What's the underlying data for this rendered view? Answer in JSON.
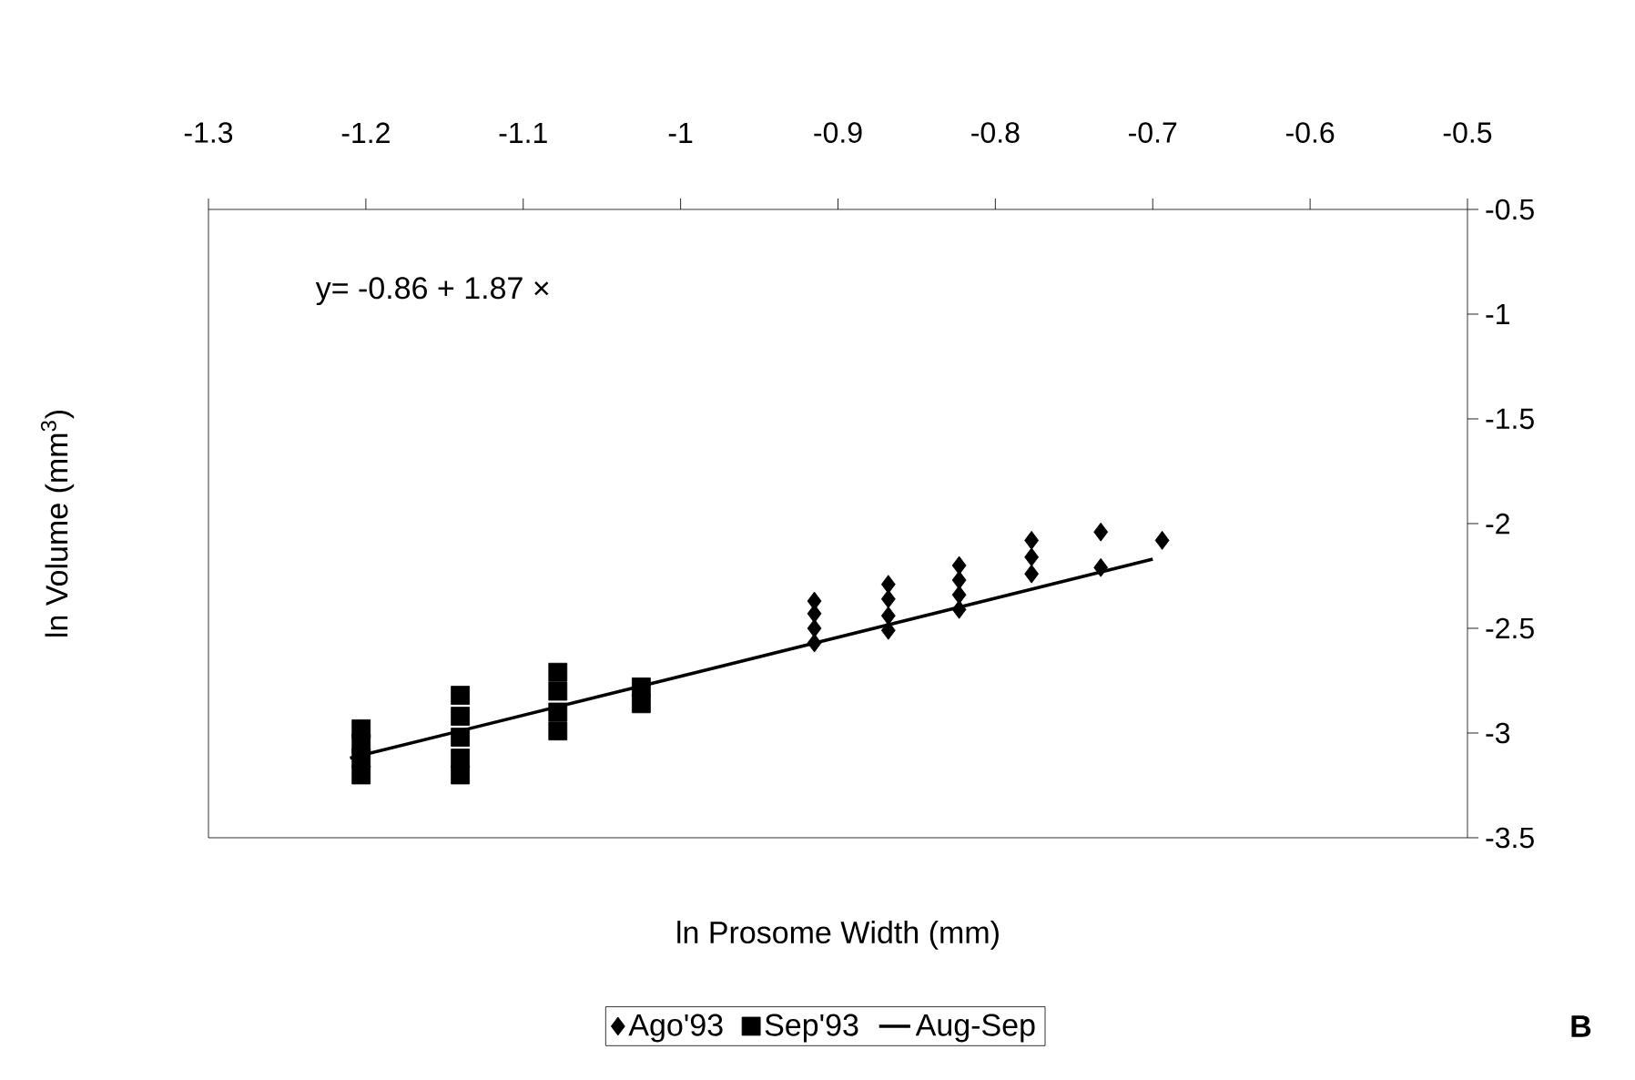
{
  "chart_data": {
    "type": "scatter",
    "xlabel": "ln Prosome Width (mm)",
    "ylabel": "ln Volume (mm$^{3}$)",
    "xlim": [
      -1.3,
      -0.5
    ],
    "xticks": [
      -1.3,
      -1.2,
      -1.1,
      -1,
      -0.9,
      -0.8,
      -0.7,
      -0.6,
      -0.5
    ],
    "ylim": [
      -3.5,
      -0.5
    ],
    "yticks": [
      -3.5,
      -3,
      -2.5,
      -2,
      -1.5,
      -1,
      -0.5
    ],
    "legend": "bottom",
    "grid": false,
    "annotations": [
      "y= -0.86 + 1.87 ×",
      "B"
    ],
    "series": [
      {
        "name": "Ago'93",
        "marker": "diamond",
        "color": "#000000",
        "x": [
          -0.915,
          -0.915,
          -0.915,
          -0.915,
          -0.868,
          -0.868,
          -0.868,
          -0.868,
          -0.823,
          -0.823,
          -0.823,
          -0.823,
          -0.777,
          -0.777,
          -0.777,
          -0.733,
          -0.733,
          -0.694
        ],
        "values": [
          -2.37,
          -2.43,
          -2.5,
          -2.57,
          -2.29,
          -2.36,
          -2.44,
          -2.51,
          -2.2,
          -2.27,
          -2.34,
          -2.41,
          -2.08,
          -2.16,
          -2.24,
          -2.04,
          -2.21,
          -2.08
        ]
      },
      {
        "name": "Sep'93",
        "marker": "square",
        "color": "#000000",
        "x": [
          -1.203,
          -1.203,
          -1.203,
          -1.203,
          -1.14,
          -1.14,
          -1.14,
          -1.14,
          -1.14,
          -1.078,
          -1.078,
          -1.078,
          -1.078,
          -1.025,
          -1.025
        ],
        "values": [
          -2.98,
          -3.05,
          -3.12,
          -3.2,
          -2.82,
          -2.92,
          -3.02,
          -3.12,
          -3.2,
          -2.71,
          -2.8,
          -2.9,
          -2.99,
          -2.78,
          -2.86
        ]
      },
      {
        "name": "Aug-Sep",
        "type": "line",
        "marker": "none",
        "line_style": "solid",
        "color": "#000000",
        "x": [
          -1.21,
          -0.7
        ],
        "values": [
          -3.12,
          -2.17
        ]
      }
    ]
  }
}
